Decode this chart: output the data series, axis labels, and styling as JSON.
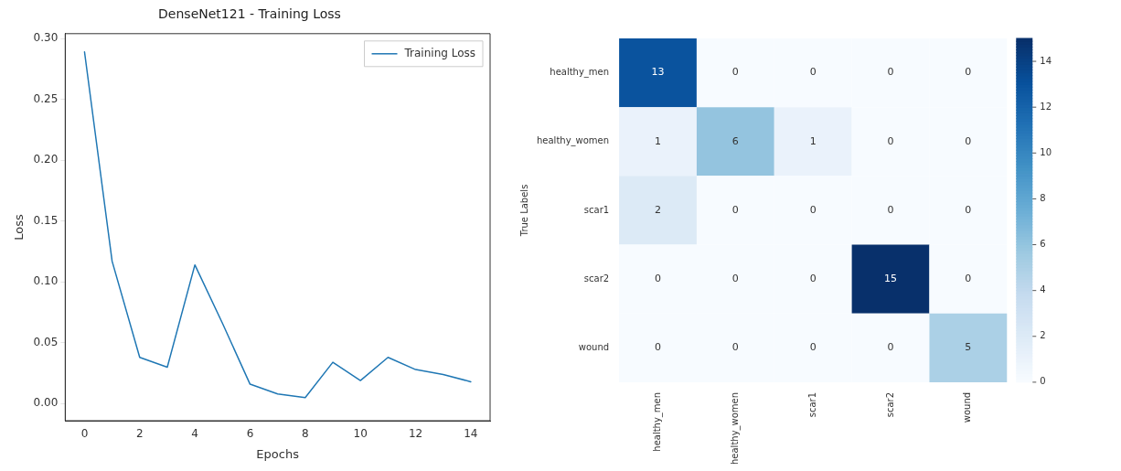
{
  "chart_data": [
    {
      "type": "line",
      "title": "DenseNet121 - Training Loss",
      "xlabel": "Epochs",
      "ylabel": "Loss",
      "x": [
        0,
        1,
        2,
        3,
        4,
        5,
        6,
        7,
        8,
        9,
        10,
        11,
        12,
        13,
        14
      ],
      "series": [
        {
          "name": "Training Loss",
          "color": "#1f77b4",
          "values": [
            0.289,
            0.117,
            0.038,
            0.03,
            0.114,
            0.066,
            0.016,
            0.008,
            0.005,
            0.034,
            0.019,
            0.038,
            0.028,
            0.024,
            0.018
          ]
        }
      ],
      "xlim": [
        -0.7,
        14.7
      ],
      "xticks": [
        0,
        2,
        4,
        6,
        8,
        10,
        12,
        14
      ],
      "ylim": [
        -0.014,
        0.304
      ],
      "yticks": [
        {
          "value": 0,
          "label": "0.00"
        },
        {
          "value": 0.05,
          "label": "0.05"
        },
        {
          "value": 0.1,
          "label": "0.10"
        },
        {
          "value": 0.15,
          "label": "0.15"
        },
        {
          "value": 0.2,
          "label": "0.20"
        },
        {
          "value": 0.25,
          "label": "0.25"
        },
        {
          "value": 0.3,
          "label": "0.30"
        }
      ],
      "legend": "top right",
      "grid": false
    },
    {
      "type": "heatmap",
      "ylabel": "True Labels",
      "categories": [
        "healthy_men",
        "healthy_women",
        "scar1",
        "scar2",
        "wound"
      ],
      "y_categories": [
        "healthy_men",
        "healthy_women",
        "scar1",
        "scar2",
        "wound"
      ],
      "cells": [
        [
          13,
          0,
          0,
          0,
          0
        ],
        [
          1,
          6,
          1,
          0,
          0
        ],
        [
          2,
          0,
          0,
          0,
          0
        ],
        [
          0,
          0,
          0,
          15,
          0
        ],
        [
          0,
          0,
          0,
          0,
          5
        ]
      ],
      "data_labels": true,
      "clim": [
        0,
        15
      ],
      "cticks": [
        0,
        2,
        4,
        6,
        8,
        10,
        12,
        14
      ]
    }
  ]
}
